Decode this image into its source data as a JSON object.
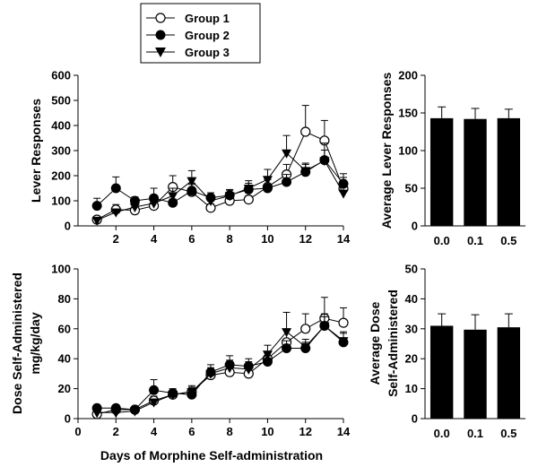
{
  "chart_data": [
    {
      "id": "lever-line",
      "type": "line",
      "ylabel": "Lever Responses",
      "ylim": [
        0,
        600
      ],
      "yticks": [
        0,
        100,
        200,
        300,
        400,
        500,
        600
      ],
      "xlim": [
        0,
        14
      ],
      "xticks": [
        2,
        4,
        6,
        8,
        10,
        12,
        14
      ],
      "x": [
        1,
        2,
        3,
        4,
        5,
        6,
        7,
        8,
        9,
        10,
        11,
        12,
        13,
        14
      ],
      "series": [
        {
          "name": "Group 1",
          "marker": "open-circle",
          "values": [
            25,
            65,
            62,
            80,
            155,
            135,
            72,
            100,
            105,
            155,
            205,
            375,
            340,
            148
          ],
          "errors": [
            10,
            20,
            12,
            15,
            45,
            30,
            15,
            20,
            15,
            30,
            40,
            105,
            80,
            45
          ]
        },
        {
          "name": "Group 2",
          "marker": "filled-circle",
          "values": [
            80,
            150,
            100,
            110,
            92,
            140,
            112,
            122,
            145,
            150,
            175,
            215,
            262,
            168
          ],
          "errors": [
            30,
            45,
            15,
            40,
            15,
            30,
            20,
            20,
            25,
            35,
            30,
            30,
            40,
            40
          ]
        },
        {
          "name": "Group 3",
          "marker": "triangle-down",
          "values": [
            22,
            55,
            75,
            90,
            120,
            180,
            100,
            120,
            150,
            185,
            290,
            220,
            260,
            130
          ],
          "errors": [
            8,
            12,
            20,
            30,
            30,
            40,
            25,
            25,
            30,
            40,
            70,
            30,
            70,
            40
          ]
        }
      ]
    },
    {
      "id": "lever-bar",
      "type": "bar",
      "ylabel": "Average Lever Responses",
      "ylim": [
        0,
        200
      ],
      "yticks": [
        0,
        50,
        100,
        150,
        200
      ],
      "categories": [
        "0.0",
        "0.1",
        "0.5"
      ],
      "values": [
        143,
        142,
        143
      ],
      "errors": [
        15,
        14,
        12
      ]
    },
    {
      "id": "dose-line",
      "type": "line",
      "ylabel_lines": [
        "Dose Self-Administered",
        "mg/kg/day"
      ],
      "xlabel": "Days of Morphine Self-administration",
      "ylim": [
        0,
        100
      ],
      "yticks": [
        0,
        20,
        40,
        60,
        80,
        100
      ],
      "xlim": [
        0,
        14
      ],
      "xticks": [
        0,
        2,
        4,
        6,
        8,
        10,
        12,
        14
      ],
      "x": [
        1,
        2,
        3,
        4,
        5,
        6,
        7,
        8,
        9,
        10,
        11,
        12,
        13,
        14
      ],
      "series": [
        {
          "name": "Group 1",
          "marker": "open-circle",
          "values": [
            3,
            6,
            6,
            12,
            16,
            18,
            29,
            31,
            30,
            40,
            51,
            60,
            67,
            64
          ],
          "errors": [
            1,
            2,
            1.5,
            3,
            3,
            3,
            4,
            4,
            4,
            5,
            8,
            10,
            14,
            10
          ]
        },
        {
          "name": "Group 2",
          "marker": "filled-circle",
          "values": [
            7,
            7,
            6,
            19,
            17,
            16,
            31,
            36,
            35,
            38,
            47,
            47,
            62,
            51
          ],
          "errors": [
            2,
            2,
            2,
            7,
            3,
            3,
            5,
            6,
            5,
            4,
            5,
            4,
            6,
            6
          ]
        },
        {
          "name": "Group 3",
          "marker": "triangle-down",
          "values": [
            4,
            4,
            5,
            11,
            16,
            18,
            30,
            34,
            33,
            43,
            58,
            48,
            62,
            52
          ],
          "errors": [
            1,
            1,
            1,
            2,
            3,
            4,
            4,
            5,
            5,
            6,
            13,
            5,
            8,
            6
          ]
        }
      ]
    },
    {
      "id": "dose-bar",
      "type": "bar",
      "ylabel_lines": [
        "Average Dose",
        "Self-Administered"
      ],
      "ylim": [
        0,
        50
      ],
      "yticks": [
        0,
        10,
        20,
        30,
        40,
        50
      ],
      "categories": [
        "0.0",
        "0.1",
        "0.5"
      ],
      "values": [
        31,
        29.7,
        30.5
      ],
      "errors": [
        4,
        5,
        4.5
      ]
    }
  ],
  "legend": [
    "Group 1",
    "Group 2",
    "Group 3"
  ]
}
